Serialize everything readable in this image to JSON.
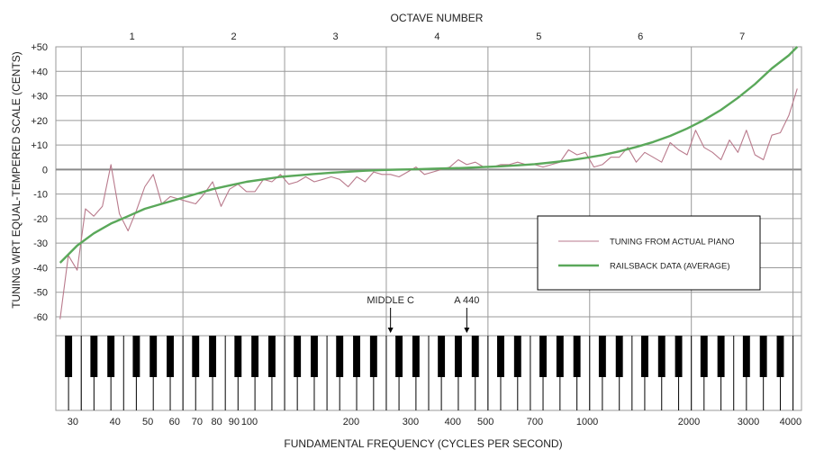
{
  "colors": {
    "grid": "#9a9a9a",
    "zero_line": "#8a8a8a",
    "piano_line": "#b97a8c",
    "railsback_line": "#5aa85a",
    "black_key": "#000000",
    "white_key_line": "#000000"
  },
  "chart_data": {
    "type": "line",
    "title": "",
    "top_axis_title": "OCTAVE NUMBER",
    "xlabel": "FUNDAMENTAL FREQUENCY (CYCLES PER SECOND)",
    "ylabel": "TUNING WRT EQUAL-TEMPERED SCALE (CENTS)",
    "x_scale": "log",
    "ylim": [
      -60,
      50
    ],
    "grid": true,
    "legend_position": "lower-right",
    "y_ticks": [
      {
        "value": 50,
        "label": "+50"
      },
      {
        "value": 40,
        "label": "+40"
      },
      {
        "value": 30,
        "label": "+30"
      },
      {
        "value": 20,
        "label": "+20"
      },
      {
        "value": 10,
        "label": "+10"
      },
      {
        "value": 0,
        "label": "0"
      },
      {
        "value": -10,
        "label": "-10"
      },
      {
        "value": -20,
        "label": "-20"
      },
      {
        "value": -30,
        "label": "-30"
      },
      {
        "value": -40,
        "label": "-40"
      },
      {
        "value": -50,
        "label": "-50"
      },
      {
        "value": -60,
        "label": "-60"
      }
    ],
    "x_ticks": [
      {
        "value": 30,
        "label": "30"
      },
      {
        "value": 40,
        "label": "40"
      },
      {
        "value": 50,
        "label": "50"
      },
      {
        "value": 60,
        "label": "60"
      },
      {
        "value": 70,
        "label": "70"
      },
      {
        "value": 80,
        "label": "80"
      },
      {
        "value": 90,
        "label": "90"
      },
      {
        "value": 100,
        "label": "100"
      },
      {
        "value": 200,
        "label": "200"
      },
      {
        "value": 300,
        "label": "300"
      },
      {
        "value": 400,
        "label": "400"
      },
      {
        "value": 500,
        "label": "500"
      },
      {
        "value": 700,
        "label": "700"
      },
      {
        "value": 1000,
        "label": "1000"
      },
      {
        "value": 2000,
        "label": "2000"
      },
      {
        "value": 3000,
        "label": "3000"
      },
      {
        "value": 4000,
        "label": "4000"
      }
    ],
    "octaves": [
      {
        "label": "1",
        "start_key": 4,
        "end_key": 15
      },
      {
        "label": "2",
        "start_key": 16,
        "end_key": 27
      },
      {
        "label": "3",
        "start_key": 28,
        "end_key": 39
      },
      {
        "label": "4",
        "start_key": 40,
        "end_key": 51
      },
      {
        "label": "5",
        "start_key": 52,
        "end_key": 63
      },
      {
        "label": "6",
        "start_key": 64,
        "end_key": 75
      },
      {
        "label": "7",
        "start_key": 76,
        "end_key": 87
      }
    ],
    "annotations": [
      {
        "label": "MIDDLE C",
        "x": 261.6
      },
      {
        "label": "A 440",
        "x": 440
      }
    ],
    "series": [
      {
        "name": "TUNING FROM ACTUAL PIANO",
        "x": [
          27.5,
          29.1,
          30.9,
          32.7,
          34.6,
          36.7,
          38.9,
          41.2,
          43.7,
          46.2,
          49.0,
          51.9,
          55.0,
          58.3,
          61.7,
          65.4,
          69.3,
          73.4,
          77.8,
          82.4,
          87.3,
          92.5,
          98.0,
          103.8,
          110.0,
          116.5,
          123.5,
          130.8,
          138.6,
          146.8,
          155.6,
          164.8,
          174.6,
          185.0,
          196.0,
          207.7,
          220.0,
          233.1,
          246.9,
          261.6,
          277.2,
          293.7,
          311.1,
          329.6,
          349.2,
          370.0,
          392.0,
          415.3,
          440.0,
          466.2,
          493.9,
          523.3,
          554.4,
          587.3,
          622.3,
          659.3,
          698.5,
          740.0,
          784.0,
          830.6,
          880.0,
          932.3,
          987.8,
          1046.5,
          1108.7,
          1174.7,
          1244.5,
          1318.5,
          1396.9,
          1480.0,
          1568.0,
          1661.2,
          1760.0,
          1864.7,
          1975.5,
          2093.0,
          2217.5,
          2349.3,
          2489.0,
          2637.0,
          2793.8,
          2960.0,
          3136.0,
          3322.4,
          3520.0,
          3729.3,
          3951.1,
          4186.0
        ],
        "values": [
          -61,
          -35,
          -41,
          -16,
          -19,
          -15,
          2,
          -18,
          -25,
          -17,
          -7,
          -2,
          -14,
          -11,
          -12,
          -13,
          -14,
          -10,
          -5,
          -15,
          -8,
          -6,
          -9,
          -9,
          -4,
          -5,
          -2,
          -6,
          -5,
          -3,
          -5,
          -4,
          -3,
          -4,
          -7,
          -3,
          -5,
          -1,
          -2,
          -2,
          -3,
          -1,
          1,
          -2,
          -1,
          0,
          1,
          4,
          2,
          3,
          1,
          1,
          2,
          2,
          3,
          2,
          2,
          1,
          2,
          3,
          8,
          6,
          7,
          1,
          2,
          5,
          5,
          9,
          3,
          7,
          5,
          3,
          11,
          8,
          6,
          16,
          9,
          7,
          4,
          12,
          7,
          16,
          6,
          4,
          14,
          15,
          22,
          33
        ]
      },
      {
        "name": "RAILSBACK DATA (AVERAGE)",
        "x": [
          27.5,
          30.9,
          34.6,
          38.9,
          43.7,
          49.0,
          55.0,
          61.7,
          69.3,
          77.8,
          87.3,
          98.0,
          110.0,
          123.5,
          138.6,
          155.6,
          174.6,
          196.0,
          220.0,
          246.9,
          277.2,
          311.1,
          349.2,
          392.0,
          440.0,
          493.9,
          554.4,
          622.3,
          698.5,
          784.0,
          880.0,
          987.8,
          1108.7,
          1244.5,
          1396.9,
          1568.0,
          1760.0,
          1975.5,
          2217.5,
          2489.0,
          2793.8,
          3136.0,
          3520.0,
          3951.1,
          4186.0
        ],
        "values": [
          -38,
          -31,
          -26,
          -22,
          -19,
          -16,
          -14,
          -12,
          -10,
          -8,
          -6.5,
          -5,
          -4,
          -3,
          -2.4,
          -1.8,
          -1.3,
          -0.9,
          -0.5,
          -0.2,
          0,
          0.1,
          0.3,
          0.5,
          0.7,
          1,
          1.3,
          1.7,
          2.2,
          2.9,
          3.7,
          4.7,
          5.9,
          7.4,
          9.2,
          11.2,
          13.7,
          16.7,
          20.2,
          24.3,
          29.2,
          34.8,
          41.2,
          46.5,
          50
        ]
      }
    ]
  }
}
